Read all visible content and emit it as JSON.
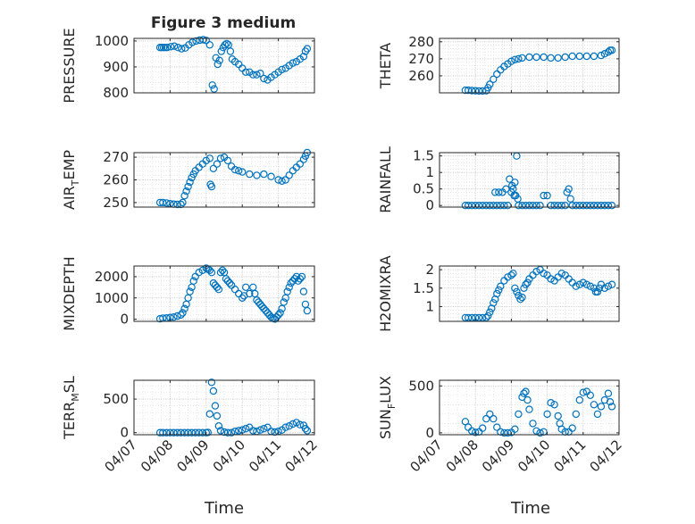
{
  "figure": {
    "title": "Figure 3 medium",
    "xlabel": "Time",
    "x_ticks": [
      "04/07",
      "04/08",
      "04/09",
      "04/10",
      "04/11",
      "04/12"
    ],
    "marker_color": "#0072BD",
    "grid": "dotted minor and major"
  },
  "chart_data": [
    {
      "type": "scatter",
      "ylabel": "PRESSURE",
      "ylim": [
        800,
        1010
      ],
      "yticks": [
        800,
        900,
        1000
      ],
      "series": [
        {
          "x": [
            7.72,
            7.77,
            7.82,
            7.87,
            7.92,
            8.02,
            8.12,
            8.22,
            8.32,
            8.42,
            8.52,
            8.62,
            8.72,
            8.82,
            8.92,
            9.0,
            9.1,
            9.17,
            9.22,
            9.27,
            9.32,
            9.37,
            9.42,
            9.47,
            9.52,
            9.57,
            9.62,
            9.67,
            9.72,
            9.8,
            9.9,
            10.0,
            10.1,
            10.2,
            10.3,
            10.4,
            10.5,
            10.6,
            10.7,
            10.8,
            10.9,
            11.0,
            11.1,
            11.2,
            11.3,
            11.4,
            11.5,
            11.6,
            11.7,
            11.75,
            11.8
          ],
          "y": [
            975,
            975,
            975,
            975,
            975,
            978,
            980,
            975,
            970,
            973,
            985,
            995,
            1000,
            1003,
            1005,
            1002,
            985,
            830,
            815,
            935,
            910,
            925,
            960,
            975,
            985,
            990,
            985,
            960,
            930,
            920,
            910,
            895,
            880,
            880,
            870,
            870,
            875,
            855,
            850,
            860,
            870,
            880,
            890,
            895,
            905,
            915,
            920,
            930,
            940,
            960,
            970
          ]
        }
      ]
    },
    {
      "type": "scatter",
      "ylabel": "THETA",
      "ylim": [
        250,
        282
      ],
      "yticks": [
        260,
        270,
        280
      ],
      "series": [
        {
          "x": [
            7.72,
            7.8,
            7.9,
            8.0,
            8.1,
            8.2,
            8.3,
            8.35,
            8.4,
            8.5,
            8.6,
            8.7,
            8.8,
            8.9,
            9.0,
            9.1,
            9.2,
            9.3,
            9.5,
            9.7,
            9.9,
            10.1,
            10.3,
            10.5,
            10.7,
            10.9,
            11.1,
            11.3,
            11.5,
            11.6,
            11.7,
            11.75,
            11.8
          ],
          "y": [
            251.5,
            251.5,
            251.3,
            251.2,
            251.1,
            251.1,
            251.2,
            253,
            255,
            258,
            261,
            263.5,
            265.5,
            267,
            268.5,
            269.5,
            270,
            270.5,
            271,
            271,
            271,
            270.5,
            270.5,
            271,
            271.5,
            271.5,
            271.5,
            271.5,
            272,
            273,
            274,
            275,
            275
          ]
        }
      ]
    },
    {
      "type": "scatter",
      "ylabel": "AIR_TEMP",
      "ylim": [
        248,
        272
      ],
      "yticks": [
        250,
        260,
        270
      ],
      "series": [
        {
          "x": [
            7.72,
            7.8,
            7.9,
            8.0,
            8.1,
            8.2,
            8.3,
            8.35,
            8.4,
            8.45,
            8.5,
            8.55,
            8.6,
            8.65,
            8.7,
            8.8,
            8.9,
            9.0,
            9.1,
            9.12,
            9.15,
            9.2,
            9.3,
            9.4,
            9.5,
            9.6,
            9.7,
            9.8,
            9.9,
            10.0,
            10.2,
            10.4,
            10.6,
            10.8,
            11.0,
            11.1,
            11.2,
            11.3,
            11.4,
            11.5,
            11.6,
            11.7,
            11.75,
            11.8
          ],
          "y": [
            250,
            250,
            249.8,
            249.5,
            249.3,
            249.2,
            249.2,
            250,
            253,
            255,
            257,
            259,
            261,
            262.5,
            264,
            265.5,
            267,
            268.5,
            269.5,
            258,
            257,
            265,
            267,
            269.5,
            270,
            268.5,
            266,
            264.5,
            264,
            263.5,
            262.5,
            262,
            262.5,
            261.5,
            260,
            259.5,
            260,
            262,
            264,
            265.5,
            267,
            269,
            270.5,
            272
          ]
        }
      ]
    },
    {
      "type": "scatter",
      "ylabel": "RAINFALL",
      "ylim": [
        -0.05,
        1.6
      ],
      "yticks": [
        0,
        0.5,
        1,
        1.5
      ],
      "series": [
        {
          "x": [
            7.72,
            7.8,
            7.9,
            8.0,
            8.1,
            8.2,
            8.3,
            8.4,
            8.5,
            8.55,
            8.6,
            8.65,
            8.7,
            8.75,
            8.8,
            8.85,
            8.9,
            8.95,
            9.0,
            9.02,
            9.05,
            9.08,
            9.1,
            9.12,
            9.15,
            9.18,
            9.2,
            9.3,
            9.4,
            9.5,
            9.6,
            9.7,
            9.8,
            9.9,
            10.0,
            10.1,
            10.2,
            10.3,
            10.4,
            10.5,
            10.55,
            10.6,
            10.65,
            10.7,
            10.8,
            10.9,
            11.0,
            11.1,
            11.2,
            11.3,
            11.4,
            11.5,
            11.6,
            11.7,
            11.8
          ],
          "y": [
            0,
            0,
            0,
            0,
            0,
            0,
            0,
            0,
            0,
            0.4,
            0,
            0.4,
            0,
            0.4,
            0,
            0.5,
            0,
            0.8,
            0.4,
            0.6,
            0.5,
            0.3,
            0.7,
            0.3,
            1.5,
            0.2,
            0,
            0,
            0,
            0,
            0,
            0,
            0,
            0.3,
            0.3,
            0,
            0,
            0,
            0,
            0,
            0.4,
            0.5,
            0.2,
            0,
            0,
            0,
            0,
            0,
            0,
            0,
            0,
            0,
            0,
            0,
            0
          ]
        }
      ]
    },
    {
      "type": "scatter",
      "ylabel": "MIXDEPTH",
      "ylim": [
        -100,
        2500
      ],
      "yticks": [
        0,
        1000,
        2000
      ],
      "series": [
        {
          "x": [
            7.72,
            7.8,
            7.9,
            8.0,
            8.1,
            8.2,
            8.3,
            8.35,
            8.4,
            8.45,
            8.5,
            8.55,
            8.6,
            8.65,
            8.7,
            8.8,
            8.9,
            9.0,
            9.05,
            9.1,
            9.15,
            9.2,
            9.25,
            9.3,
            9.35,
            9.4,
            9.45,
            9.5,
            9.55,
            9.6,
            9.65,
            9.7,
            9.8,
            9.9,
            10.0,
            10.05,
            10.1,
            10.2,
            10.3,
            10.35,
            10.4,
            10.45,
            10.5,
            10.55,
            10.6,
            10.65,
            10.7,
            10.75,
            10.8,
            10.85,
            10.9,
            10.95,
            11.0,
            11.05,
            11.1,
            11.15,
            11.2,
            11.25,
            11.3,
            11.35,
            11.4,
            11.45,
            11.5,
            11.55,
            11.6,
            11.65,
            11.7,
            11.75,
            11.8
          ],
          "y": [
            20,
            50,
            60,
            80,
            100,
            150,
            200,
            300,
            500,
            700,
            1000,
            1300,
            1500,
            1800,
            2000,
            2200,
            2300,
            2400,
            2350,
            2300,
            2200,
            1700,
            1600,
            1500,
            1400,
            2200,
            2300,
            2200,
            1900,
            1800,
            1700,
            1600,
            1400,
            1200,
            1000,
            1100,
            1500,
            1200,
            1500,
            1200,
            900,
            800,
            700,
            600,
            500,
            400,
            300,
            200,
            100,
            50,
            10,
            100,
            200,
            300,
            500,
            800,
            1000,
            1300,
            1500,
            1700,
            1800,
            1900,
            2000,
            1800,
            1900,
            2000,
            1300,
            700,
            400
          ]
        }
      ]
    },
    {
      "type": "scatter",
      "ylabel": "H2OMIXRA",
      "ylim": [
        0.6,
        2.1
      ],
      "yticks": [
        1,
        1.5,
        2
      ],
      "series": [
        {
          "x": [
            7.72,
            7.8,
            7.9,
            8.0,
            8.1,
            8.2,
            8.3,
            8.35,
            8.4,
            8.45,
            8.5,
            8.55,
            8.6,
            8.65,
            8.7,
            8.8,
            8.9,
            9.0,
            9.05,
            9.1,
            9.15,
            9.2,
            9.25,
            9.3,
            9.35,
            9.4,
            9.45,
            9.5,
            9.6,
            9.7,
            9.8,
            9.9,
            10.0,
            10.1,
            10.2,
            10.3,
            10.4,
            10.5,
            10.6,
            10.7,
            10.8,
            10.9,
            11.0,
            11.1,
            11.2,
            11.3,
            11.35,
            11.4,
            11.45,
            11.5,
            11.6,
            11.7,
            11.8
          ],
          "y": [
            0.7,
            0.7,
            0.7,
            0.7,
            0.7,
            0.7,
            0.7,
            0.75,
            0.85,
            0.95,
            1.1,
            1.2,
            1.35,
            1.45,
            1.55,
            1.7,
            1.8,
            1.85,
            1.9,
            1.5,
            1.4,
            1.3,
            1.2,
            1.25,
            1.5,
            1.6,
            1.65,
            1.75,
            1.85,
            1.95,
            2.0,
            1.9,
            1.85,
            1.75,
            1.7,
            1.8,
            1.9,
            1.85,
            1.75,
            1.65,
            1.55,
            1.6,
            1.65,
            1.6,
            1.55,
            1.5,
            1.4,
            1.4,
            1.5,
            1.6,
            1.5,
            1.55,
            1.6
          ]
        }
      ]
    },
    {
      "type": "scatter",
      "ylabel": "TERR_MSL",
      "ylim": [
        -30,
        780
      ],
      "yticks": [
        0,
        500
      ],
      "series": [
        {
          "x": [
            7.72,
            7.8,
            7.9,
            8.0,
            8.1,
            8.2,
            8.3,
            8.4,
            8.5,
            8.6,
            8.7,
            8.8,
            8.9,
            9.0,
            9.05,
            9.1,
            9.15,
            9.2,
            9.25,
            9.3,
            9.35,
            9.4,
            9.5,
            9.6,
            9.7,
            9.8,
            9.9,
            10.0,
            10.1,
            10.2,
            10.3,
            10.4,
            10.5,
            10.6,
            10.7,
            10.8,
            10.9,
            11.0,
            11.1,
            11.2,
            11.3,
            11.4,
            11.5,
            11.6,
            11.7,
            11.75,
            11.8
          ],
          "y": [
            0,
            0,
            0,
            0,
            0,
            0,
            0,
            0,
            0,
            0,
            0,
            0,
            0,
            0,
            5,
            280,
            750,
            620,
            400,
            250,
            100,
            30,
            10,
            0,
            0,
            20,
            30,
            40,
            60,
            80,
            30,
            20,
            40,
            60,
            80,
            20,
            10,
            20,
            40,
            80,
            100,
            130,
            150,
            120,
            110,
            60,
            30
          ]
        }
      ]
    },
    {
      "type": "scatter",
      "ylabel": "SUN_FLUX",
      "ylim": [
        -20,
        560
      ],
      "yticks": [
        0,
        500
      ],
      "series": [
        {
          "x": [
            7.72,
            7.8,
            7.9,
            8.0,
            8.1,
            8.2,
            8.3,
            8.4,
            8.5,
            8.6,
            8.7,
            8.8,
            8.9,
            9.0,
            9.1,
            9.2,
            9.3,
            9.35,
            9.4,
            9.45,
            9.5,
            9.6,
            9.7,
            9.8,
            9.9,
            10.0,
            10.1,
            10.2,
            10.3,
            10.35,
            10.4,
            10.5,
            10.6,
            10.7,
            10.8,
            10.9,
            11.0,
            11.1,
            11.2,
            11.3,
            11.4,
            11.5,
            11.6,
            11.7,
            11.75,
            11.8
          ],
          "y": [
            120,
            60,
            20,
            5,
            10,
            50,
            150,
            200,
            150,
            60,
            10,
            0,
            0,
            5,
            40,
            200,
            380,
            420,
            440,
            350,
            250,
            100,
            20,
            0,
            10,
            200,
            320,
            300,
            180,
            100,
            40,
            10,
            10,
            50,
            200,
            350,
            430,
            440,
            400,
            300,
            200,
            280,
            350,
            420,
            330,
            280
          ]
        }
      ]
    }
  ]
}
